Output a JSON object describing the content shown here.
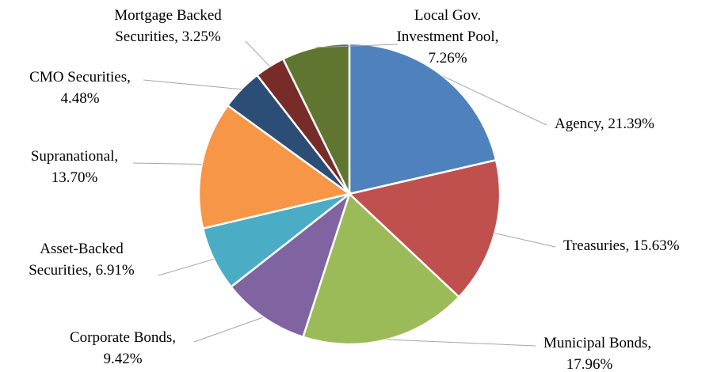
{
  "chart_data": {
    "type": "pie",
    "title": "",
    "legend": "none",
    "slices": [
      {
        "name": "Agency",
        "value": 21.39,
        "label_lines": [
          "Agency, 21.39%"
        ],
        "color": "#4f81bd"
      },
      {
        "name": "Treasuries",
        "value": 15.63,
        "label_lines": [
          "Treasuries, 15.63%"
        ],
        "color": "#c0504d"
      },
      {
        "name": "Municipal Bonds",
        "value": 17.96,
        "label_lines": [
          "Municipal Bonds,",
          "17.96%"
        ],
        "color": "#9bbb59"
      },
      {
        "name": "Corporate Bonds",
        "value": 9.42,
        "label_lines": [
          "Corporate Bonds,",
          "9.42%"
        ],
        "color": "#8064a2"
      },
      {
        "name": "Asset-Backed Securities",
        "value": 6.91,
        "label_lines": [
          "Asset-Backed",
          "Securities, 6.91%"
        ],
        "color": "#4bacc6"
      },
      {
        "name": "Supranational",
        "value": 13.7,
        "label_lines": [
          "Supranational,",
          "13.70%"
        ],
        "color": "#f79646"
      },
      {
        "name": "CMO Securities",
        "value": 4.48,
        "label_lines": [
          "CMO Securities,",
          "4.48%"
        ],
        "color": "#2c4d75"
      },
      {
        "name": "Mortgage Backed Securities",
        "value": 3.25,
        "label_lines": [
          "Mortgage Backed",
          "Securities, 3.25%"
        ],
        "color": "#772c2a"
      },
      {
        "name": "Local Gov. Investment Pool",
        "value": 7.26,
        "label_lines": [
          "Local Gov.",
          "Investment Pool,",
          "7.26%"
        ],
        "color": "#5f7530"
      }
    ]
  }
}
